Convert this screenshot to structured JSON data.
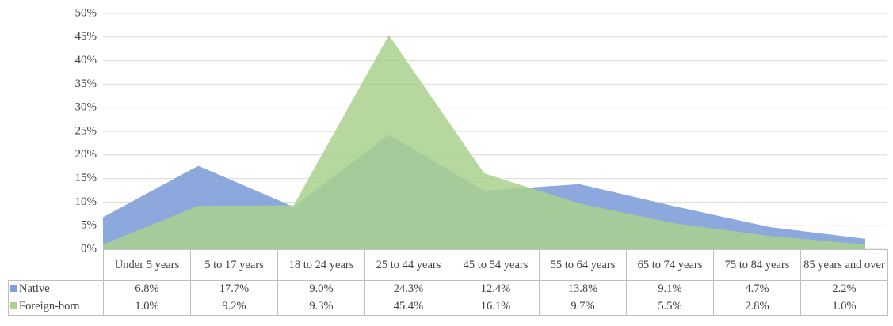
{
  "chart_data": {
    "type": "area",
    "categories": [
      "Under 5 years",
      "5 to 17 years",
      "18 to 24 years",
      "25 to 44 years",
      "45 to 54 years",
      "55 to 64 years",
      "65 to 74 years",
      "75 to 84 years",
      "85 years and over"
    ],
    "series": [
      {
        "name": "Native",
        "color": "#7f9fd9",
        "values": [
          6.8,
          17.7,
          9.0,
          24.3,
          12.4,
          13.8,
          9.1,
          4.7,
          2.2
        ],
        "value_labels": [
          "6.8%",
          "17.7%",
          "9.0%",
          "24.3%",
          "12.4%",
          "13.8%",
          "9.1%",
          "4.7%",
          "2.2%"
        ]
      },
      {
        "name": "Foreign-born",
        "color": "#a9d18e",
        "values": [
          1.0,
          9.2,
          9.3,
          45.4,
          16.1,
          9.7,
          5.5,
          2.8,
          1.0
        ],
        "value_labels": [
          "1.0%",
          "9.2%",
          "9.3%",
          "45.4%",
          "16.1%",
          "9.7%",
          "5.5%",
          "2.8%",
          "1.0%"
        ]
      }
    ],
    "ylim": [
      0,
      50
    ],
    "yticks": [
      {
        "value": 0,
        "label": "0%"
      },
      {
        "value": 5,
        "label": "5%"
      },
      {
        "value": 10,
        "label": "10%"
      },
      {
        "value": 15,
        "label": "15%"
      },
      {
        "value": 20,
        "label": "20%"
      },
      {
        "value": 25,
        "label": "25%"
      },
      {
        "value": 30,
        "label": "30%"
      },
      {
        "value": 35,
        "label": "35%"
      },
      {
        "value": 40,
        "label": "40%"
      },
      {
        "value": 45,
        "label": "45%"
      },
      {
        "value": 50,
        "label": "50%"
      }
    ],
    "grid": true
  }
}
